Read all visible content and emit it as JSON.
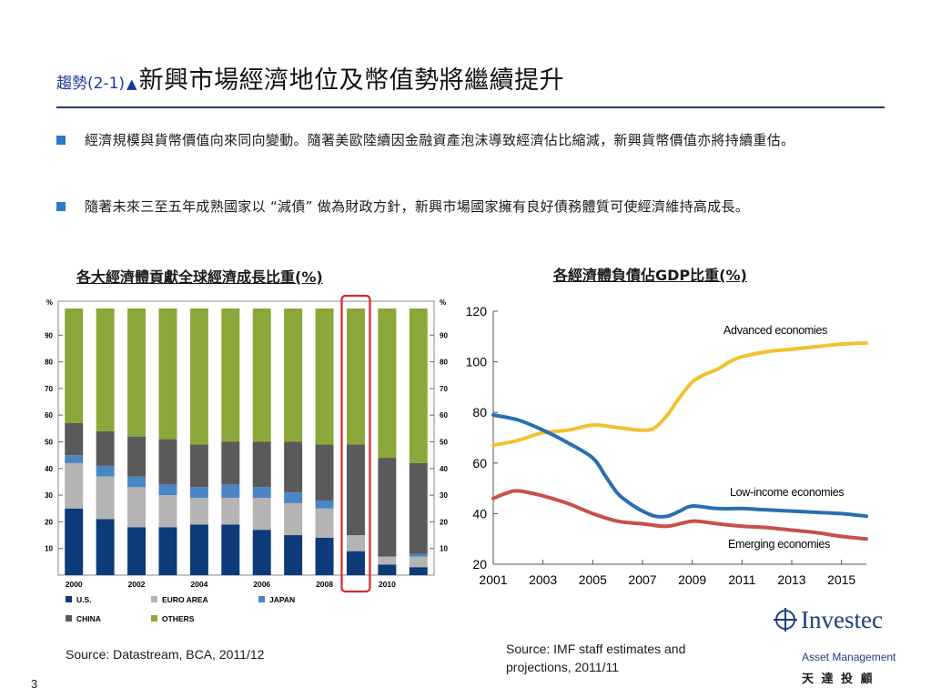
{
  "slide": {
    "title_prefix": "趨勢(2-1)",
    "title_marker": "▲",
    "title": "新興市場經濟地位及幣值勢將繼續提升",
    "bullets": [
      "經濟規模與貨幣價值向來同向變動。隨著美歐陸續因金融資產泡沫導致經濟佔比縮減，新興貨幣價值亦將持續重估。",
      "隨著未來三至五年成熟國家以 “減債” 做為財政方針，新興市場國家擁有良好債務體質可使經濟維持高成長。"
    ],
    "left_heading": "各大經濟體貢獻全球經濟成長比重(%)",
    "right_heading": "各經濟體負債佔GDP比重(%)",
    "left_source": "Source: Datastream, BCA, 2011/12",
    "right_source": "Source: IMF staff estimates and projections, 2011/11",
    "page_number": "3"
  },
  "logo": {
    "name": "Investec",
    "sub": "Asset Management",
    "chinese": "天 達 投 顧"
  },
  "colors": {
    "title_rule": "#23356e",
    "bullet": "#2a78c8",
    "us": "#0d3a78",
    "euro": "#b4b4b4",
    "japan": "#4a86c6",
    "china": "#5a5a5a",
    "others": "#8aa83a",
    "advanced": "#f2c12e",
    "low_income": "#2a6fb0",
    "emerging": "#c8504a",
    "highlight_box": "#d8262e"
  },
  "chart_data": [
    {
      "type": "bar",
      "stacked": true,
      "categories": [
        "2000",
        "2001",
        "2002",
        "2003",
        "2004",
        "2005",
        "2006",
        "2007",
        "2008",
        "2009",
        "2010",
        "2011"
      ],
      "xtick_labels": [
        "2000",
        "",
        "2002",
        "",
        "2004",
        "",
        "2006",
        "",
        "2008",
        "",
        "2010",
        ""
      ],
      "ylabel": "%",
      "ylim": [
        0,
        100
      ],
      "yticks": [
        10,
        20,
        30,
        40,
        50,
        60,
        70,
        80,
        90
      ],
      "series": [
        {
          "name": "U.S.",
          "values": [
            25,
            21,
            18,
            18,
            19,
            19,
            17,
            15,
            14,
            9,
            4,
            3
          ]
        },
        {
          "name": "EURO AREA",
          "values": [
            17,
            16,
            15,
            12,
            10,
            10,
            12,
            12,
            11,
            6,
            3,
            4
          ]
        },
        {
          "name": "JAPAN",
          "values": [
            3,
            4,
            4,
            4,
            4,
            5,
            4,
            4,
            3,
            0,
            0,
            1
          ]
        },
        {
          "name": "CHINA",
          "values": [
            12,
            13,
            15,
            17,
            16,
            16,
            17,
            19,
            21,
            34,
            37,
            34
          ]
        },
        {
          "name": "OTHERS",
          "values": [
            43,
            46,
            48,
            49,
            51,
            50,
            50,
            50,
            51,
            51,
            56,
            58
          ]
        }
      ],
      "highlight_category": "2009"
    },
    {
      "type": "line",
      "ylim": [
        20,
        120
      ],
      "yticks": [
        20,
        40,
        60,
        80,
        100,
        120
      ],
      "xlim": [
        2001,
        2016
      ],
      "xticks": [
        2001,
        2003,
        2005,
        2007,
        2009,
        2011,
        2013,
        2015
      ],
      "series": [
        {
          "name": "Advanced economies",
          "x": [
            2001,
            2002,
            2003,
            2004,
            2005,
            2006,
            2007,
            2007.5,
            2008,
            2008.5,
            2009,
            2009.5,
            2010,
            2010.5,
            2011,
            2012,
            2013,
            2014,
            2015,
            2016
          ],
          "y": [
            67,
            69,
            72,
            73,
            75,
            74,
            73,
            74,
            79,
            86,
            92,
            95,
            97,
            100,
            102,
            104,
            105,
            106,
            107,
            107.5
          ]
        },
        {
          "name": "Low-income economies",
          "x": [
            2001,
            2002,
            2003,
            2004,
            2005,
            2005.5,
            2006,
            2006.5,
            2007,
            2007.5,
            2008,
            2008.5,
            2009,
            2010,
            2011,
            2012,
            2013,
            2014,
            2015,
            2016
          ],
          "y": [
            79,
            77,
            73,
            68,
            62,
            55,
            48,
            44,
            41,
            39,
            39,
            41,
            43,
            42,
            42,
            41.5,
            41,
            40.5,
            40,
            39
          ]
        },
        {
          "name": "Emerging economies",
          "x": [
            2001,
            2001.5,
            2002,
            2003,
            2004,
            2005,
            2006,
            2007,
            2008,
            2009,
            2010,
            2011,
            2012,
            2013,
            2014,
            2015,
            2016
          ],
          "y": [
            46,
            48,
            49,
            47,
            44,
            40,
            37,
            36,
            35,
            37,
            36,
            35,
            34.5,
            33.5,
            32.5,
            31,
            30
          ]
        }
      ]
    }
  ]
}
